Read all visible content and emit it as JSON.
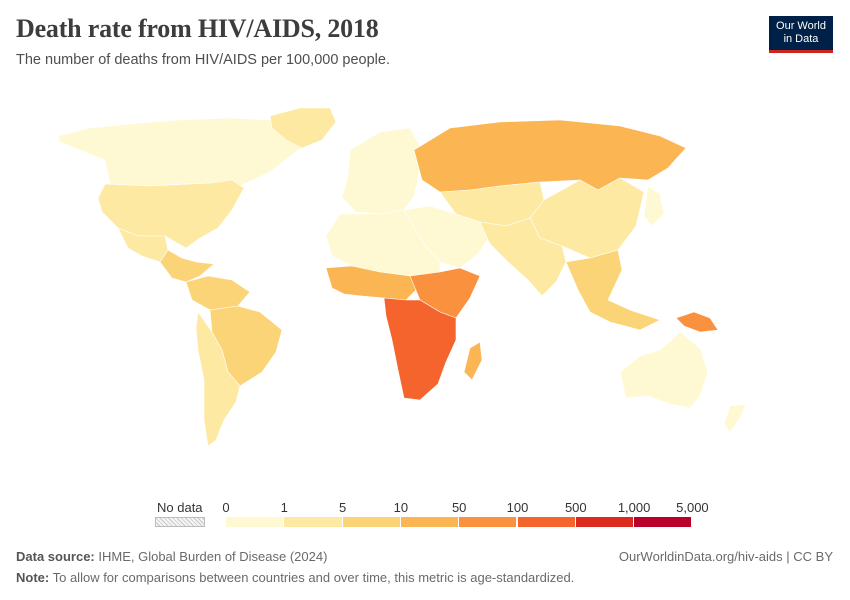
{
  "header": {
    "title": "Death rate from HIV/AIDS, 2018",
    "subtitle": "The number of deaths from HIV/AIDS per 100,000 people."
  },
  "logo": {
    "line1": "Our World",
    "line2": "in Data"
  },
  "legend": {
    "no_data_label": "No data",
    "ticks": [
      "0",
      "1",
      "5",
      "10",
      "50",
      "100",
      "500",
      "1,000",
      "5,000"
    ],
    "colors": [
      "#fef9d3",
      "#fde9a2",
      "#fcd478",
      "#fbb552",
      "#f9913e",
      "#f4642c",
      "#dd2a1f",
      "#b8002a"
    ]
  },
  "footer": {
    "source_label": "Data source:",
    "source_text": "IHME, Global Burden of Disease (2024)",
    "note_label": "Note:",
    "note_text": "To allow for comparisons between countries and over time, this metric is age-standardized.",
    "link": "OurWorldinData.org/hiv-aids | CC BY"
  },
  "map_regions": [
    {
      "name": "Canada",
      "color": "#fef9d3"
    },
    {
      "name": "United States",
      "color": "#fde9a2"
    },
    {
      "name": "Greenland",
      "color": "#fde9a2"
    },
    {
      "name": "Mexico",
      "color": "#fde9a2"
    },
    {
      "name": "Central America & Caribbean",
      "color": "#fcd478"
    },
    {
      "name": "Northern South America",
      "color": "#fcd478"
    },
    {
      "name": "Brazil",
      "color": "#fcd478"
    },
    {
      "name": "Southern South America",
      "color": "#fde9a2"
    },
    {
      "name": "Europe",
      "color": "#fef9d3"
    },
    {
      "name": "Russia",
      "color": "#fbb552"
    },
    {
      "name": "Central Asia",
      "color": "#fde9a2"
    },
    {
      "name": "China & Mongolia",
      "color": "#fde9a2"
    },
    {
      "name": "Middle East",
      "color": "#fef9d3"
    },
    {
      "name": "South Asia",
      "color": "#fde9a2"
    },
    {
      "name": "Southeast Asia",
      "color": "#fcd478"
    },
    {
      "name": "North Africa",
      "color": "#fef9d3"
    },
    {
      "name": "West & Central Africa",
      "color": "#fbb552"
    },
    {
      "name": "East Africa",
      "color": "#f9913e"
    },
    {
      "name": "Central-Southern Africa",
      "color": "#f4642c"
    },
    {
      "name": "Madagascar",
      "color": "#fbb552"
    },
    {
      "name": "Australia",
      "color": "#fef9d3"
    },
    {
      "name": "New Guinea",
      "color": "#f9913e"
    },
    {
      "name": "New Zealand",
      "color": "#fef9d3"
    },
    {
      "name": "Japan",
      "color": "#fef9d3"
    }
  ]
}
